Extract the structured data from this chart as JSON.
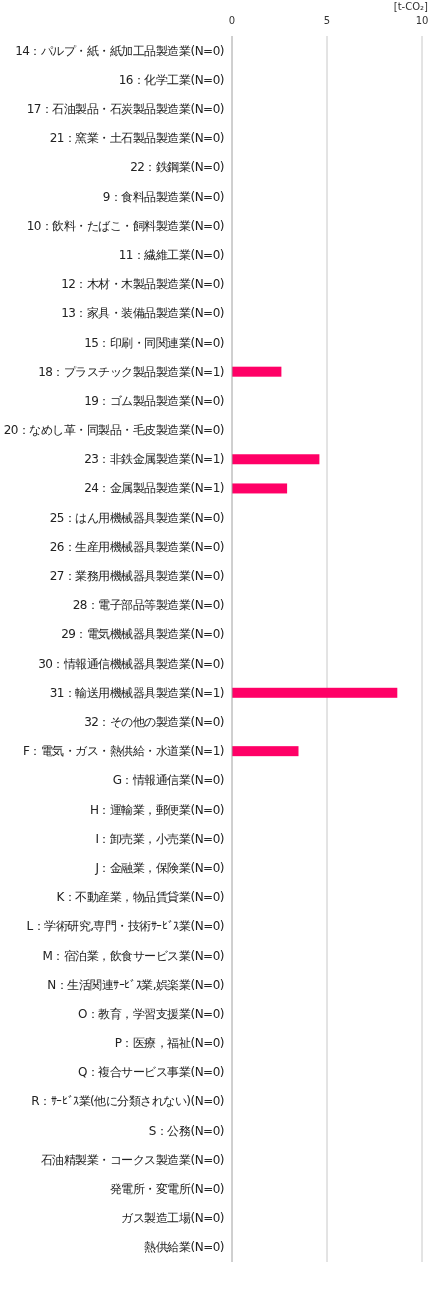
{
  "chart_data": {
    "type": "bar",
    "orientation": "horizontal",
    "xlabel": "[t-CO₂]",
    "categories": [
      "14：パルプ・紙・紙加工品製造業(N=0)",
      "16：化学工業(N=0)",
      "17：石油製品・石炭製品製造業(N=0)",
      "21：窯業・土石製品製造業(N=0)",
      "22：鉄鋼業(N=0)",
      "9：食料品製造業(N=0)",
      "10：飲料・たばこ・飼料製造業(N=0)",
      "11：繊維工業(N=0)",
      "12：木材・木製品製造業(N=0)",
      "13：家具・装備品製造業(N=0)",
      "15：印刷・同関連業(N=0)",
      "18：プラスチック製品製造業(N=1)",
      "19：ゴム製品製造業(N=0)",
      "20：なめし革・同製品・毛皮製造業(N=0)",
      "23：非鉄金属製造業(N=1)",
      "24：金属製品製造業(N=1)",
      "25：はん用機械器具製造業(N=0)",
      "26：生産用機械器具製造業(N=0)",
      "27：業務用機械器具製造業(N=0)",
      "28：電子部品等製造業(N=0)",
      "29：電気機械器具製造業(N=0)",
      "30：情報通信機械器具製造業(N=0)",
      "31：輸送用機械器具製造業(N=1)",
      "32：その他の製造業(N=0)",
      "F：電気・ガス・熱供給・水道業(N=1)",
      "G：情報通信業(N=0)",
      "H：運輸業，郵便業(N=0)",
      "I：卸売業，小売業(N=0)",
      "J：金融業，保険業(N=0)",
      "K：不動産業，物品賃貸業(N=0)",
      "L：学術研究,専門・技術ｻｰﾋﾞｽ業(N=0)",
      "M：宿泊業，飲食サービス業(N=0)",
      "N：生活関連ｻｰﾋﾞｽ業,娯楽業(N=0)",
      "O：教育，学習支援業(N=0)",
      "P：医療，福祉(N=0)",
      "Q：複合サービス事業(N=0)",
      "R：ｻｰﾋﾞｽ業(他に分類されない)(N=0)",
      "S：公務(N=0)",
      "石油精製業・コークス製造業(N=0)",
      "発電所・変電所(N=0)",
      "ガス製造工場(N=0)",
      "熱供給業(N=0)"
    ],
    "values": [
      0,
      0,
      0,
      0,
      0,
      0,
      0,
      0,
      0,
      0,
      0,
      2.6,
      0,
      0,
      4.6,
      2.9,
      0,
      0,
      0,
      0,
      0,
      0,
      8.7,
      0,
      3.5,
      0,
      0,
      0,
      0,
      0,
      0,
      0,
      0,
      0,
      0,
      0,
      0,
      0,
      0,
      0,
      0,
      0
    ],
    "color": "#ff0066",
    "xlim": [
      0,
      10
    ],
    "xticks": [
      0,
      5,
      10
    ],
    "grid": "x"
  }
}
